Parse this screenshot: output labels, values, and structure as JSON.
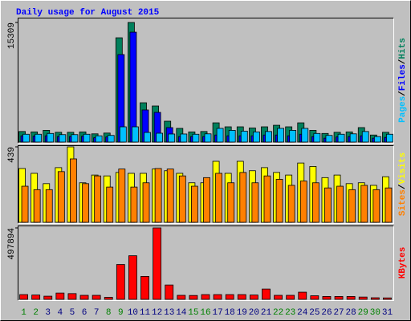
{
  "chart_data": [
    {
      "type": "bar",
      "title": "Daily usage for August 2015",
      "ylim": [
        0,
        15309
      ],
      "yticks": [
        15309
      ],
      "legend_separator": "/",
      "series": [
        {
          "name": "Hits",
          "color": "#00805c",
          "values": [
            1350,
            1300,
            1500,
            1250,
            1250,
            1300,
            1050,
            1150,
            13350,
            15309,
            5030,
            4620,
            2670,
            1750,
            1300,
            1350,
            2460,
            1950,
            1950,
            1800,
            1950,
            2150,
            1950,
            2460,
            1500,
            1100,
            1250,
            1300,
            1850,
            900,
            1250
          ]
        },
        {
          "name": "Files",
          "color": "#0000ff",
          "values": [
            800,
            750,
            800,
            700,
            700,
            750,
            550,
            650,
            11200,
            14070,
            4110,
            3800,
            1850,
            700,
            700,
            700,
            900,
            800,
            800,
            800,
            900,
            900,
            800,
            1000,
            700,
            500,
            650,
            700,
            800,
            500,
            600
          ]
        },
        {
          "name": "Pages",
          "color": "#00c0ff",
          "values": [
            1000,
            1000,
            1100,
            950,
            950,
            1000,
            800,
            850,
            1950,
            1950,
            1230,
            1130,
            1030,
            1030,
            1000,
            1050,
            1750,
            1500,
            1400,
            1300,
            1350,
            1750,
            1500,
            1750,
            1100,
            850,
            1000,
            1050,
            1350,
            700,
            1000
          ]
        }
      ]
    },
    {
      "type": "bar",
      "ylim": [
        0,
        439
      ],
      "yticks": [
        439
      ],
      "legend_separator": "/",
      "series": [
        {
          "name": "Visits",
          "color": "#ffff00",
          "values": [
            313,
            285,
            225,
            318,
            439,
            230,
            275,
            270,
            290,
            285,
            285,
            310,
            300,
            285,
            230,
            230,
            355,
            285,
            355,
            300,
            318,
            290,
            275,
            345,
            325,
            260,
            275,
            225,
            230,
            215,
            265
          ]
        },
        {
          "name": "Sites",
          "color": "#ff8000",
          "values": [
            210,
            190,
            190,
            295,
            369,
            225,
            270,
            205,
            310,
            205,
            230,
            313,
            310,
            270,
            210,
            260,
            285,
            230,
            290,
            230,
            270,
            250,
            215,
            240,
            230,
            200,
            210,
            190,
            215,
            190,
            200
          ]
        }
      ]
    },
    {
      "type": "bar",
      "ylim": [
        0,
        497894
      ],
      "yticks": [
        497894
      ],
      "categories": [
        "1",
        "2",
        "3",
        "4",
        "5",
        "6",
        "7",
        "8",
        "9",
        "10",
        "11",
        "12",
        "13",
        "14",
        "15",
        "16",
        "17",
        "18",
        "19",
        "20",
        "21",
        "22",
        "23",
        "24",
        "25",
        "26",
        "27",
        "28",
        "29",
        "30",
        "31"
      ],
      "category_colors": [
        "#008000",
        "#008000",
        "#000080",
        "#000080",
        "#000080",
        "#000080",
        "#000080",
        "#008000",
        "#008000",
        "#000080",
        "#000080",
        "#000080",
        "#000080",
        "#000080",
        "#008000",
        "#008000",
        "#000080",
        "#000080",
        "#000080",
        "#000080",
        "#000080",
        "#008000",
        "#008000",
        "#000080",
        "#000080",
        "#000080",
        "#000080",
        "#000080",
        "#008000",
        "#008000",
        "#000080"
      ],
      "series": [
        {
          "name": "KBytes",
          "color": "#ff0000",
          "values": [
            33000,
            30000,
            22000,
            44000,
            40000,
            28000,
            28000,
            14000,
            243000,
            304000,
            160000,
            497894,
            100000,
            28000,
            27000,
            33000,
            33000,
            33000,
            33000,
            30000,
            72000,
            28000,
            28000,
            50000,
            25000,
            20000,
            20000,
            20000,
            16000,
            11000,
            10000
          ]
        }
      ]
    }
  ]
}
